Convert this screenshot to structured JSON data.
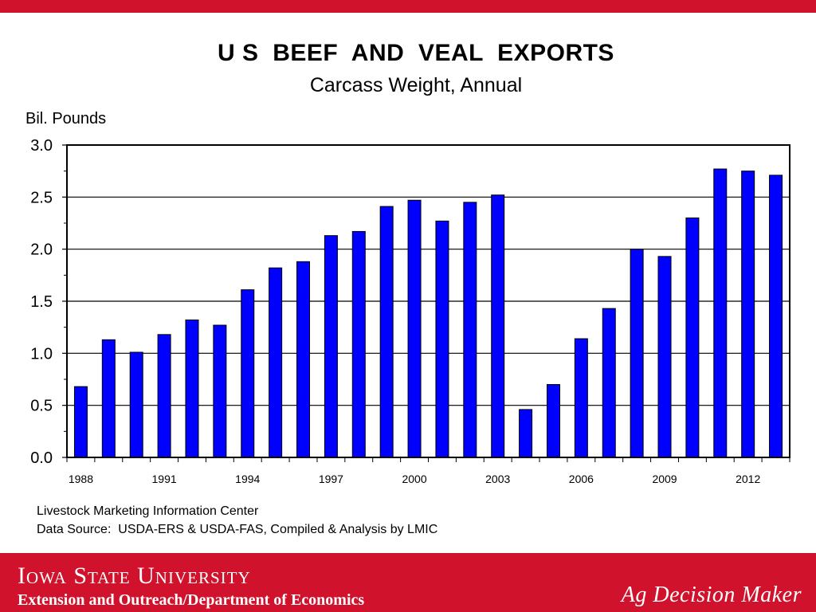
{
  "header": {
    "title": "U S  BEEF  AND  VEAL  EXPORTS",
    "subtitle": "Carcass Weight, Annual"
  },
  "chart_data": {
    "type": "bar",
    "title": "U S  BEEF  AND  VEAL  EXPORTS",
    "subtitle": "Carcass Weight, Annual",
    "xlabel": "",
    "ylabel": "Bil. Pounds",
    "ylim": [
      0,
      3.0
    ],
    "yticks": [
      "0.0",
      "0.5",
      "1.0",
      "1.5",
      "2.0",
      "2.5",
      "3.0"
    ],
    "grid": true,
    "bar_color": "#0000ff",
    "categories": [
      "1988",
      "1989",
      "1990",
      "1991",
      "1992",
      "1993",
      "1994",
      "1995",
      "1996",
      "1997",
      "1998",
      "1999",
      "2000",
      "2001",
      "2002",
      "2003",
      "2004",
      "2005",
      "2006",
      "2007",
      "2008",
      "2009",
      "2010",
      "2011",
      "2012",
      "2013"
    ],
    "xtick_labels": [
      "1988",
      "1991",
      "1994",
      "1997",
      "2000",
      "2003",
      "2006",
      "2009",
      "2012"
    ],
    "values": [
      0.68,
      1.13,
      1.01,
      1.18,
      1.32,
      1.27,
      1.61,
      1.82,
      1.88,
      2.13,
      2.17,
      2.41,
      2.47,
      2.27,
      2.45,
      2.52,
      0.46,
      0.7,
      1.14,
      1.43,
      2.0,
      1.93,
      2.3,
      2.77,
      2.75,
      2.71
    ]
  },
  "source": {
    "line1": "Livestock Marketing Information Center",
    "line2": "Data Source:  USDA-ERS & USDA-FAS, Compiled & Analysis by LMIC"
  },
  "footer": {
    "university": "Iowa State University",
    "department": "Extension and Outreach/Department of Economics",
    "tagline": "Ag Decision Maker"
  },
  "colors": {
    "brand_red": "#d0122c",
    "bar_blue": "#0000ff"
  }
}
